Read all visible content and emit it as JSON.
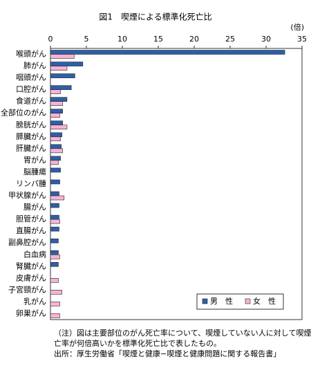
{
  "chart_data": {
    "type": "barh",
    "title": "図1　喫煙による標準化死亡比",
    "unit_label": "(倍)",
    "categories": [
      "喉頭がん",
      "肺がん",
      "咽頭がん",
      "口腔がん",
      "食道がん",
      "全部位のがん",
      "膀胱がん",
      "膵臓がん",
      "肝臓がん",
      "胃がん",
      "脳腫瘍",
      "リンパ腫",
      "甲状腺がん",
      "腸がん",
      "胆管がん",
      "直腸がん",
      "副鼻腔がん",
      "白血病",
      "腎臓がん",
      "皮膚がん",
      "子宮頸がん",
      "乳がん",
      "卵巣がん"
    ],
    "series": [
      {
        "name": "男　性",
        "color": "#2e5fa8",
        "values": [
          32.6,
          4.5,
          3.4,
          2.9,
          2.3,
          1.7,
          1.7,
          1.6,
          1.5,
          1.4,
          1.4,
          1.3,
          1.2,
          1.2,
          1.2,
          1.2,
          1.1,
          1.1,
          1.1,
          null,
          null,
          null,
          null
        ]
      },
      {
        "name": "女　性",
        "color": "#f7b3d6",
        "values": [
          3.3,
          2.3,
          null,
          1.4,
          1.7,
          1.3,
          2.3,
          1.4,
          1.7,
          1.1,
          null,
          null,
          1.9,
          null,
          1.3,
          null,
          null,
          1.3,
          null,
          1.1,
          1.6,
          1.3,
          1.3
        ]
      }
    ],
    "xlim": [
      0,
      35
    ],
    "xticks": [
      0,
      5,
      10,
      15,
      20,
      25,
      30,
      35
    ],
    "legend": "lower right",
    "notes": [
      "（注）図は主要部位のがん死亡率について、喫煙していない人に対して喫煙者の死",
      "亡率が何倍高いかを標準化死亡比で表したもの。",
      "出所：厚生労働省「喫煙と健康−喫煙と健康問題に関する報告書」"
    ]
  }
}
